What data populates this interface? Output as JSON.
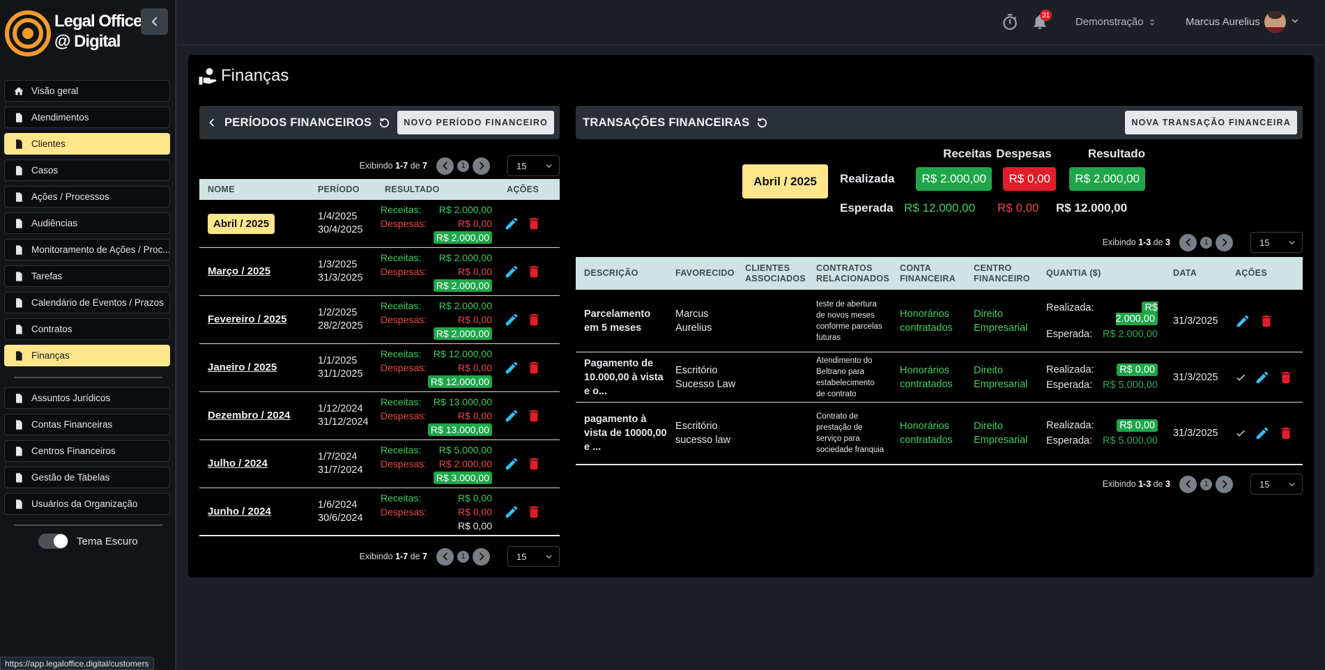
{
  "sidebar": {
    "logo": {
      "line1": "Legal Office",
      "line2": "@ Digital"
    },
    "menu": [
      "Visão geral",
      "Atendimentos",
      "Clientes",
      "Casos",
      "Ações / Processos",
      "Audiências",
      "Monitoramento de Ações / Proc...",
      "Tarefas",
      "Calendário de Eventos / Prazos",
      "Contratos",
      "Finanças"
    ],
    "highlighted": [
      false,
      false,
      true,
      false,
      false,
      false,
      false,
      false,
      false,
      false,
      true
    ],
    "menu2": [
      "Assuntos Jurídicos",
      "Contas Financeiras",
      "Centros Financeiros",
      "Gestão de Tabelas",
      "Usuários da Organização"
    ],
    "theme_toggle": "Tema Escuro"
  },
  "topbar": {
    "notifications": "31",
    "organization": "Demonstração",
    "user": "Marcus Aurelius"
  },
  "page_title": "Finanças",
  "periods": {
    "title": "PERÍODOS FINANCEIROS",
    "new_button": "NOVO PERÍODO FINANCEIRO",
    "pager": {
      "label": "Exibindo",
      "range": "1-7",
      "of": "de",
      "total": "7",
      "page": "1",
      "per_page": "15"
    },
    "columns": [
      "NOME",
      "PERÍODO",
      "RESULTADO",
      "AÇÕES"
    ],
    "result_labels": [
      "Receitas:",
      "Despesas:"
    ],
    "rows": [
      {
        "name": "Abril / 2025",
        "start": "1/4/2025",
        "end": "30/4/2025",
        "income": "R$ 2.000,00",
        "expense": "R$ 0,00",
        "result": "R$ 2.000,00",
        "selected": true,
        "result_badge": true
      },
      {
        "name": "Março / 2025",
        "start": "1/3/2025",
        "end": "31/3/2025",
        "income": "R$ 2.000,00",
        "expense": "R$ 0,00",
        "result": "R$ 2.000,00",
        "selected": false,
        "result_badge": true
      },
      {
        "name": "Fevereiro / 2025",
        "start": "1/2/2025",
        "end": "28/2/2025",
        "income": "R$ 2.000,00",
        "expense": "R$ 0,00",
        "result": "R$ 2.000,00",
        "selected": false,
        "result_badge": true
      },
      {
        "name": "Janeiro / 2025",
        "start": "1/1/2025",
        "end": "31/1/2025",
        "income": "R$ 12.000,00",
        "expense": "R$ 0,00",
        "result": "R$ 12.000,00",
        "selected": false,
        "result_badge": true
      },
      {
        "name": "Dezembro / 2024",
        "start": "1/12/2024",
        "end": "31/12/2024",
        "income": "R$ 13.000,00",
        "expense": "R$ 0,00",
        "result": "R$ 13.000,00",
        "selected": false,
        "result_badge": true
      },
      {
        "name": "Julho / 2024",
        "start": "1/7/2024",
        "end": "31/7/2024",
        "income": "R$ 5.000,00",
        "expense": "R$ 2.000,00",
        "result": "R$ 3.000,00",
        "selected": false,
        "result_badge": true
      },
      {
        "name": "Junho / 2024",
        "start": "1/6/2024",
        "end": "30/6/2024",
        "income": "R$ 0,00",
        "expense": "R$ 0,00",
        "result": "R$ 0,00",
        "selected": false,
        "result_badge": false
      }
    ]
  },
  "transactions": {
    "title": "TRANSAÇÕES FINANCEIRAS",
    "new_button": "NOVA TRANSAÇÃO FINANCEIRA",
    "summary": {
      "period": "Abril / 2025",
      "headers": [
        "Receitas",
        "Despesas",
        "Resultado"
      ],
      "rows": [
        {
          "label": "Realizada",
          "values": [
            "R$ 2.000,00",
            "R$ 0,00",
            "R$ 2.000,00"
          ]
        },
        {
          "label": "Esperada",
          "values": [
            "R$ 12.000,00",
            "R$ 0,00",
            "R$ 12.000,00"
          ]
        }
      ]
    },
    "pager": {
      "label": "Exibindo",
      "range": "1-3",
      "of": "de",
      "total": "3",
      "page": "1",
      "per_page": "15"
    },
    "columns": [
      "DESCRIÇÃO",
      "FAVORECIDO",
      "CLIENTES ASSOCIADOS",
      "CONTRATOS RELACIONADOS",
      "CONTA FINANCEIRA",
      "CENTRO FINANCEIRO",
      "QUANTIA ($)",
      "DATA",
      "AÇÕES"
    ],
    "amount_labels": [
      "Realizada:",
      "Esperada:"
    ],
    "rows": [
      {
        "description": "Parcelamento em 5 meses",
        "payee": "Marcus Aurelius",
        "contract": "teste de abertura de novos meses conforme parcelas futuras",
        "account": "Honorários contratados",
        "center": "Direito Empresarial",
        "realized": "R$ 2.000,00",
        "expected": "R$ 2.000,00",
        "date": "31/3/2025",
        "confirm": false
      },
      {
        "description": "Pagamento de 10.000,00 à vista e o...",
        "payee": "Escritório Sucesso Law",
        "contract": "Atendimento do Beltrano para estabelecimento de contrato",
        "account": "Honorários contratados",
        "center": "Direito Empresarial",
        "realized": "R$ 0,00",
        "expected": "R$ 5.000,00",
        "date": "31/3/2025",
        "confirm": true
      },
      {
        "description": "pagamento à vista de 10000,00 e ...",
        "payee": "Escritório sucesso law",
        "contract": "Contrato de prestação de serviço para sociedade franquia",
        "account": "Honorários contratados",
        "center": "Direito Empresarial",
        "realized": "R$ 0,00",
        "expected": "R$ 5.000,00",
        "date": "31/3/2025",
        "confirm": true
      }
    ]
  },
  "status_url": "https://app.legaloffice.digital/customers"
}
